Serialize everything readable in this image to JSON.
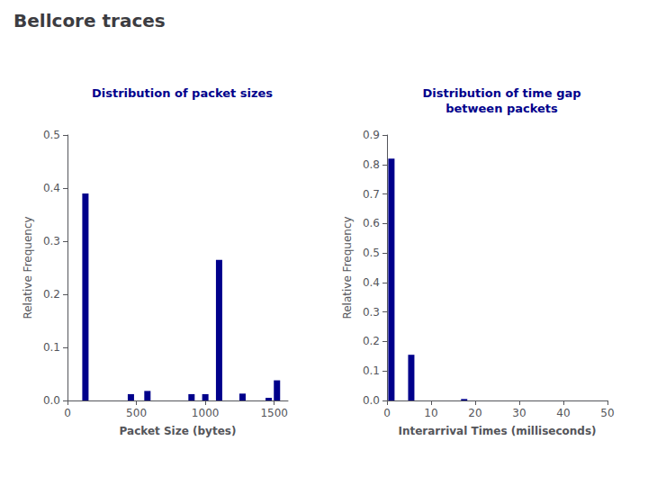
{
  "title": "Bellcore traces",
  "chart_data": [
    {
      "type": "bar",
      "title": "Distribution of packet sizes",
      "xlabel": "Packet Size (bytes)",
      "ylabel": "Relative Frequency",
      "x": [
        130,
        460,
        580,
        900,
        1000,
        1100,
        1270,
        1460,
        1520
      ],
      "values": [
        0.39,
        0.012,
        0.018,
        0.012,
        0.012,
        0.265,
        0.013,
        0.005,
        0.038
      ],
      "color": "#00008B",
      "xlim": [
        0,
        1600
      ],
      "ylim": [
        0,
        0.5
      ],
      "xticks": [
        0,
        500,
        1000,
        1500
      ],
      "yticks": [
        {
          "value": 0,
          "label": "0.0"
        },
        0.1,
        0.2,
        0.3,
        0.4,
        0.5
      ],
      "grid": false
    },
    {
      "type": "bar",
      "title": "Distribution of time gap\nbetween packets",
      "xlabel": "Interarrival Times (milliseconds)",
      "ylabel": "Relative Frequency",
      "x": [
        1.0,
        5.5,
        17.5
      ],
      "values": [
        0.82,
        0.155,
        0.005
      ],
      "color": "#00008B",
      "xlim": [
        0,
        50
      ],
      "ylim": [
        0,
        0.9
      ],
      "xticks": [
        0,
        10,
        20,
        30,
        40,
        50
      ],
      "yticks": [
        {
          "value": 0,
          "label": "0.0"
        },
        0.1,
        0.2,
        0.3,
        0.4,
        0.5,
        0.6,
        0.7,
        0.8,
        0.9
      ],
      "grid": false
    }
  ]
}
